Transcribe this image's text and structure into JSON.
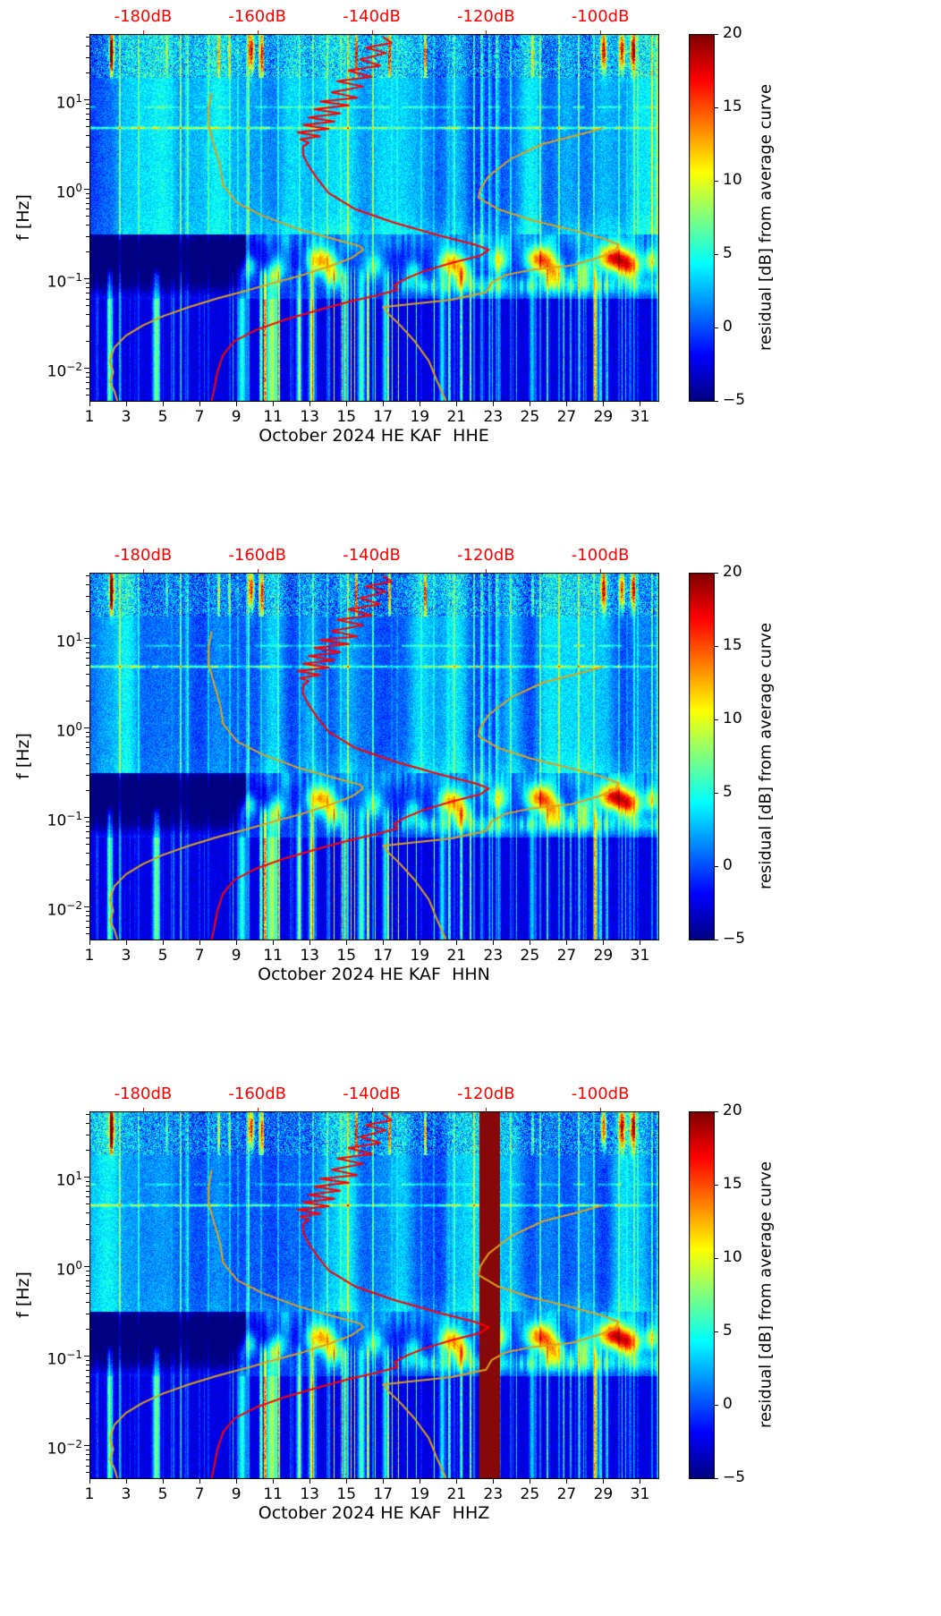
{
  "shared": {
    "ylabel": "f [Hz]",
    "colorbar_label": "residual [dB] from average curve",
    "top_db_ticks": [
      {
        "value": -180,
        "label": "-180dB"
      },
      {
        "value": -160,
        "label": "-160dB"
      },
      {
        "value": -140,
        "label": "-140dB"
      },
      {
        "value": -120,
        "label": "-120dB"
      },
      {
        "value": -100,
        "label": "-100dB"
      }
    ],
    "x_ticks": [
      1,
      3,
      5,
      7,
      9,
      11,
      13,
      15,
      17,
      19,
      21,
      23,
      25,
      27,
      29,
      31
    ],
    "y_tick_exponents": [
      1,
      0,
      -1,
      -2
    ],
    "colorbar_ticks": [
      {
        "value": 20,
        "label": "20"
      },
      {
        "value": 15,
        "label": "15"
      },
      {
        "value": 10,
        "label": "10"
      },
      {
        "value": 5,
        "label": "5"
      },
      {
        "value": 0,
        "label": "0"
      },
      {
        "value": -5,
        "label": "−5"
      }
    ],
    "colors": {
      "curve_red": "#ff0000",
      "curve_orange": "#dca11e",
      "top_label_red": "#ff0000",
      "saturated_band": "#860808"
    }
  },
  "panels": [
    {
      "channel": "HHE",
      "xlabel": "October 2024 HE KAF  HHE"
    },
    {
      "channel": "HHN",
      "xlabel": "October 2024 HE KAF  HHN"
    },
    {
      "channel": "HHZ",
      "xlabel": "October 2024 HE KAF  HHZ",
      "saturated_band_days": [
        22.25,
        23.35
      ]
    }
  ],
  "chart_data": {
    "type": "heatmap",
    "title": "",
    "x_range_days": [
      1,
      32
    ],
    "month": "October 2024",
    "network_station": "HE KAF",
    "y_range_hz": [
      0.0043,
      54
    ],
    "y_scale": "log",
    "color_range_db": [
      -5,
      20
    ],
    "colormap": "jet",
    "top_axis_db_range": [
      -189,
      -90
    ],
    "legend_position": "none",
    "grid": false,
    "panels": [
      {
        "channel": "HHE"
      },
      {
        "channel": "HHN"
      },
      {
        "channel": "HHZ",
        "saturated_column_days": [
          22.25,
          23.35
        ]
      }
    ],
    "quiet_band": {
      "f_hz": [
        0.1,
        0.35
      ],
      "days": [
        1,
        9.5
      ]
    },
    "microseism_blobs": [
      {
        "day": 9.7,
        "f_hz": 0.14,
        "amp_db": 8,
        "width_days": 0.3
      },
      {
        "day": 11.2,
        "f_hz": 0.13,
        "amp_db": 7,
        "width_days": 0.35
      },
      {
        "day": 13.6,
        "f_hz": 0.16,
        "amp_db": 13,
        "width_days": 0.55
      },
      {
        "day": 14.3,
        "f_hz": 0.107,
        "amp_db": 9,
        "width_days": 0.35
      },
      {
        "day": 16.5,
        "f_hz": 0.14,
        "amp_db": 6,
        "width_days": 0.4
      },
      {
        "day": 18.6,
        "f_hz": 0.12,
        "amp_db": 6,
        "width_days": 0.3
      },
      {
        "day": 20.7,
        "f_hz": 0.15,
        "amp_db": 12,
        "width_days": 0.5
      },
      {
        "day": 21.3,
        "f_hz": 0.11,
        "amp_db": 9,
        "width_days": 0.3
      },
      {
        "day": 23.3,
        "f_hz": 0.16,
        "amp_db": 9,
        "width_days": 0.35
      },
      {
        "day": 25.5,
        "f_hz": 0.165,
        "amp_db": 15,
        "width_days": 0.55
      },
      {
        "day": 26.3,
        "f_hz": 0.117,
        "amp_db": 11,
        "width_days": 0.4
      },
      {
        "day": 27.9,
        "f_hz": 0.126,
        "amp_db": 8,
        "width_days": 0.35
      },
      {
        "day": 29.5,
        "f_hz": 0.17,
        "amp_db": 16,
        "width_days": 0.6
      },
      {
        "day": 30.4,
        "f_hz": 0.138,
        "amp_db": 13,
        "width_days": 0.45
      },
      {
        "day": 31.6,
        "f_hz": 0.158,
        "amp_db": 10,
        "width_days": 0.3
      }
    ],
    "low_freq_columns": [
      {
        "day": 2.1,
        "amp_db": 8,
        "width_days": 0.1
      },
      {
        "day": 4.6,
        "amp_db": 9,
        "width_days": 0.12
      },
      {
        "day": 9.3,
        "amp_db": 8,
        "width_days": 0.15
      },
      {
        "day": 10.9,
        "amp_db": 11,
        "width_days": 0.22
      },
      {
        "day": 12.4,
        "amp_db": 8,
        "width_days": 0.1
      },
      {
        "day": 13.1,
        "amp_db": 9,
        "width_days": 0.12
      },
      {
        "day": 14.9,
        "amp_db": 8,
        "width_days": 0.1
      },
      {
        "day": 15.8,
        "amp_db": 9,
        "width_days": 0.13
      },
      {
        "day": 17.1,
        "amp_db": 7,
        "width_days": 0.1
      },
      {
        "day": 20.2,
        "amp_db": 7,
        "width_days": 0.1
      },
      {
        "day": 25.1,
        "amp_db": 6,
        "width_days": 0.1
      },
      {
        "day": 28.6,
        "amp_db": 6,
        "width_days": 0.1
      }
    ],
    "top_patch_days": [
      2.2,
      9.8,
      29.0,
      30.0,
      30.6
    ],
    "curves": [
      {
        "name": "station-average-psd",
        "color": "#ff0000",
        "points_f_db": [
          [
            50,
            -138
          ],
          [
            43,
            -136.5
          ],
          [
            38,
            -141
          ],
          [
            33,
            -137.5
          ],
          [
            28,
            -142
          ],
          [
            24,
            -138.5
          ],
          [
            21,
            -144
          ],
          [
            18,
            -140
          ],
          [
            16,
            -146
          ],
          [
            14,
            -141.5
          ],
          [
            12,
            -147
          ],
          [
            10.5,
            -142.5
          ],
          [
            9.5,
            -149
          ],
          [
            8.6,
            -144
          ],
          [
            7.8,
            -150
          ],
          [
            7.0,
            -145.5
          ],
          [
            6.3,
            -151
          ],
          [
            5.7,
            -146.5
          ],
          [
            5.2,
            -152
          ],
          [
            4.7,
            -147.5
          ],
          [
            4.3,
            -153
          ],
          [
            3.9,
            -149
          ],
          [
            3.6,
            -152.5
          ],
          [
            3.3,
            -151
          ],
          [
            3.0,
            -152
          ],
          [
            2.4,
            -152
          ],
          [
            1.8,
            -151
          ],
          [
            1.3,
            -149.5
          ],
          [
            0.9,
            -147.5
          ],
          [
            0.6,
            -143
          ],
          [
            0.42,
            -136
          ],
          [
            0.3,
            -128
          ],
          [
            0.24,
            -122
          ],
          [
            0.21,
            -119.5
          ],
          [
            0.18,
            -121
          ],
          [
            0.15,
            -126
          ],
          [
            0.12,
            -131
          ],
          [
            0.1,
            -134
          ],
          [
            0.085,
            -136
          ],
          [
            0.075,
            -135.5
          ],
          [
            0.065,
            -139
          ],
          [
            0.055,
            -144
          ],
          [
            0.045,
            -149
          ],
          [
            0.035,
            -155
          ],
          [
            0.027,
            -160
          ],
          [
            0.02,
            -164
          ],
          [
            0.014,
            -166
          ],
          [
            0.009,
            -167
          ],
          [
            0.006,
            -167.5
          ],
          [
            0.0043,
            -168
          ]
        ]
      },
      {
        "name": "low-noise-model",
        "color": "#dca11e",
        "points_f_db": [
          [
            12,
            -168
          ],
          [
            8,
            -168.5
          ],
          [
            5,
            -168.5
          ],
          [
            3,
            -167.5
          ],
          [
            1.8,
            -166.5
          ],
          [
            1.1,
            -166
          ],
          [
            0.7,
            -163.5
          ],
          [
            0.5,
            -159
          ],
          [
            0.36,
            -153
          ],
          [
            0.28,
            -147
          ],
          [
            0.23,
            -142
          ],
          [
            0.21,
            -141.5
          ],
          [
            0.17,
            -143.5
          ],
          [
            0.14,
            -147
          ],
          [
            0.11,
            -152
          ],
          [
            0.09,
            -157
          ],
          [
            0.073,
            -162
          ],
          [
            0.06,
            -167
          ],
          [
            0.048,
            -172
          ],
          [
            0.038,
            -176.5
          ],
          [
            0.03,
            -180
          ],
          [
            0.023,
            -183
          ],
          [
            0.017,
            -185
          ],
          [
            0.012,
            -185.8
          ],
          [
            0.009,
            -185.2
          ],
          [
            0.007,
            -185.8
          ],
          [
            0.0055,
            -185
          ],
          [
            0.0043,
            -184.5
          ]
        ]
      },
      {
        "name": "high-noise-model",
        "color": "#dca11e",
        "points_f_db": [
          [
            4.8,
            -99.5
          ],
          [
            4.0,
            -104
          ],
          [
            3.2,
            -110
          ],
          [
            2.2,
            -115.5
          ],
          [
            1.4,
            -119.5
          ],
          [
            1.0,
            -121
          ],
          [
            0.8,
            -121.3
          ],
          [
            0.6,
            -118
          ],
          [
            0.45,
            -112
          ],
          [
            0.35,
            -105
          ],
          [
            0.28,
            -99.5
          ],
          [
            0.24,
            -96.8
          ],
          [
            0.2,
            -97.5
          ],
          [
            0.17,
            -100.5
          ],
          [
            0.14,
            -105
          ],
          [
            0.125,
            -112
          ],
          [
            0.11,
            -116.5
          ],
          [
            0.09,
            -119
          ],
          [
            0.07,
            -120
          ],
          [
            0.058,
            -126
          ],
          [
            0.052,
            -133
          ],
          [
            0.048,
            -138
          ],
          [
            0.04,
            -137
          ],
          [
            0.03,
            -135
          ],
          [
            0.02,
            -132.5
          ],
          [
            0.012,
            -130
          ],
          [
            0.007,
            -128.5
          ],
          [
            0.0043,
            -127
          ]
        ]
      }
    ]
  }
}
